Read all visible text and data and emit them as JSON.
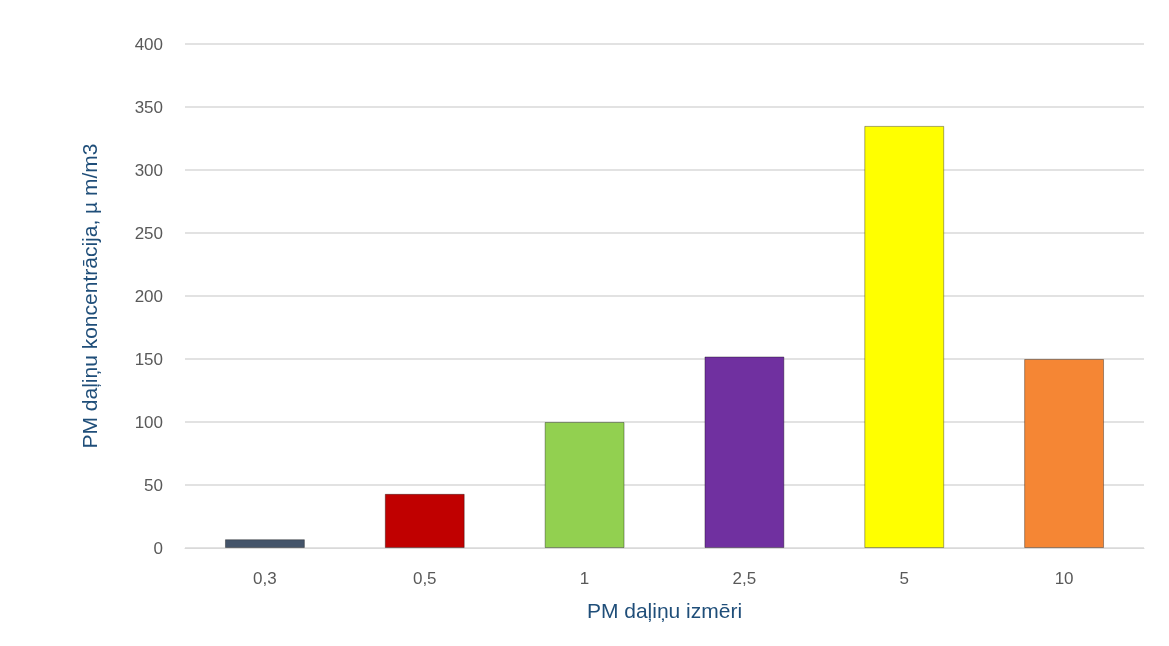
{
  "chart_data": {
    "type": "bar",
    "xlabel": "PM daļiņu izmēri",
    "ylabel": "PM daļiņu koncentrācija, µ m/m3",
    "categories": [
      "0,3",
      "0,5",
      "1",
      "2,5",
      "5",
      "10"
    ],
    "values": [
      7,
      43,
      100,
      152,
      335,
      150
    ],
    "colors": [
      "#44546a",
      "#c00000",
      "#92d050",
      "#7030a0",
      "#ffff00",
      "#f58634"
    ],
    "ylim": [
      0,
      400
    ],
    "yticks": [
      0,
      50,
      100,
      150,
      200,
      250,
      300,
      350,
      400
    ],
    "grid": "y"
  }
}
